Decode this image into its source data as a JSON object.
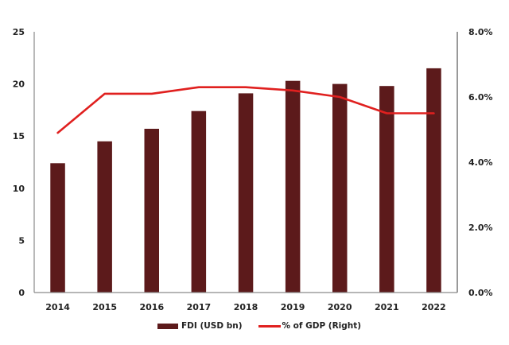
{
  "chart_data": {
    "type": "bar+line",
    "title": "",
    "categories": [
      "2014",
      "2015",
      "2016",
      "2017",
      "2018",
      "2019",
      "2020",
      "2021",
      "2022"
    ],
    "series": [
      {
        "name": "FDI (USD bn)",
        "type": "bar",
        "axis": "left",
        "color": "#5C1A1B",
        "values": [
          12.4,
          14.5,
          15.7,
          17.4,
          19.1,
          20.3,
          20.0,
          19.8,
          21.5
        ]
      },
      {
        "name": "% of GDP (Right)",
        "type": "line",
        "axis": "right",
        "color": "#E0201F",
        "values": [
          4.9,
          6.1,
          6.1,
          6.3,
          6.3,
          6.2,
          6.0,
          5.5,
          5.5
        ]
      }
    ],
    "left_axis": {
      "min": 0,
      "max": 25,
      "ticks": [
        "0",
        "5",
        "10",
        "15",
        "20",
        "25"
      ],
      "tick_values": [
        0,
        5,
        10,
        15,
        20,
        25
      ]
    },
    "right_axis": {
      "min": 0,
      "max": 8,
      "ticks": [
        "0.0%",
        "2.0%",
        "4.0%",
        "6.0%",
        "8.0%"
      ],
      "tick_values": [
        0,
        2,
        4,
        6,
        8
      ]
    },
    "xlabel": "",
    "ylabel": "",
    "ylim": [
      0,
      25
    ],
    "y2lim": [
      0,
      8
    ],
    "grid": false,
    "legend_position": "bottom"
  },
  "legend": {
    "items": [
      {
        "label": "FDI (USD bn)",
        "color": "#5C1A1B",
        "kind": "bar"
      },
      {
        "label": "% of GDP (Right)",
        "color": "#E0201F",
        "kind": "line"
      }
    ]
  }
}
